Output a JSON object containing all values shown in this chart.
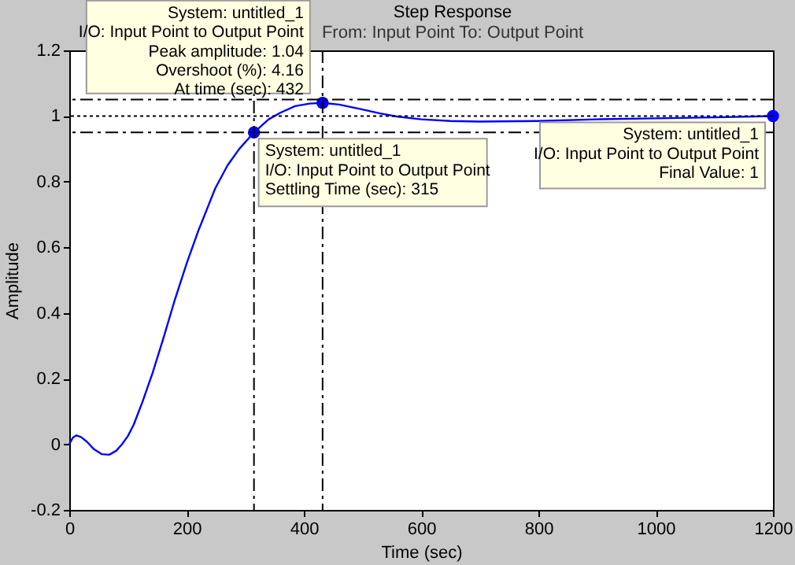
{
  "chart_data": {
    "type": "line",
    "title": "Step Response",
    "subtitle": "From: Input Point  To: Output Point",
    "xlabel": "Time (sec)",
    "ylabel": "Amplitude",
    "xlim": [
      0,
      1200
    ],
    "ylim": [
      -0.2,
      1.2
    ],
    "xticks": [
      0,
      200,
      400,
      600,
      800,
      1000,
      1200
    ],
    "yticks": [
      -0.2,
      0,
      0.2,
      0.4,
      0.6,
      0.8,
      1,
      1.2
    ],
    "series": [
      {
        "color": "#0000ff",
        "x": [
          0,
          6,
          12,
          20,
          30,
          42,
          55,
          68,
          80,
          90,
          100,
          110,
          125,
          142,
          160,
          180,
          200,
          220,
          249,
          270,
          290,
          315,
          340,
          360,
          385,
          410,
          432,
          460,
          500,
          530,
          560,
          600,
          650,
          700,
          800,
          900,
          1000,
          1100,
          1200
        ],
        "values": [
          0,
          0.02,
          0.027,
          0.022,
          0.008,
          -0.015,
          -0.03,
          -0.032,
          -0.02,
          0,
          0.025,
          0.06,
          0.13,
          0.217,
          0.32,
          0.44,
          0.55,
          0.65,
          0.78,
          0.85,
          0.9,
          0.95,
          0.99,
          1.01,
          1.03,
          1.038,
          1.04,
          1.035,
          1.02,
          1.008,
          0.998,
          0.99,
          0.985,
          0.983,
          0.985,
          0.99,
          0.993,
          0.996,
          1
        ]
      },
      {
        "type": "scatter",
        "color": "#0000ff",
        "marker": "circle",
        "x": [
          315,
          432,
          1200
        ],
        "values": [
          0.95,
          1.04,
          1
        ]
      }
    ],
    "ref_lines": [
      {
        "axis": "y",
        "value": 1.05,
        "color": "#000000",
        "line_style": "dashed"
      },
      {
        "axis": "y",
        "value": 0.95,
        "color": "#000000",
        "line_style": "dashed"
      },
      {
        "axis": "y",
        "value": 1,
        "color": "#000000",
        "line_style": "dotted"
      },
      {
        "axis": "x",
        "value": 315,
        "color": "#000000",
        "line_style": "dashed"
      },
      {
        "axis": "x",
        "value": 432,
        "color": "#000000",
        "line_style": "dashed"
      }
    ],
    "annotations": [
      {
        "text": "System: untitled_1\nI/O: Input Point to Output Point\nPeak amplitude: 1.04\nOvershoot (%): 4.16\nAt time (sec): 432",
        "x": 432,
        "y": 1.04
      },
      {
        "text": "System: untitled_1\nI/O: Input Point to Output Point\nSettling Time (sec): 315",
        "x": 315,
        "y": 0.95
      },
      {
        "text": "System: untitled_1\nI/O: Input Point to Output Point\nFinal Value: 1",
        "x": 1200,
        "y": 1
      }
    ]
  }
}
